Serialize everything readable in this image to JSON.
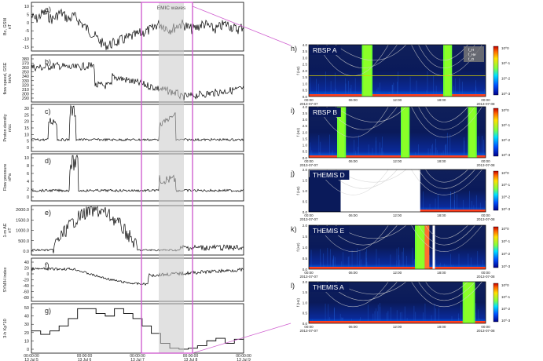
{
  "figure": {
    "left_panels": [
      {
        "letter": "a)",
        "ylabel": [
          "Bz, GSM",
          "nT"
        ],
        "ticks": [
          "10",
          "5",
          "0",
          "-5",
          "-10",
          "-15"
        ]
      },
      {
        "letter": "b)",
        "ylabel": [
          "flow speed, GSE",
          "km/s"
        ],
        "ticks": [
          "380",
          "370",
          "360",
          "350",
          "340",
          "330",
          "320",
          "310",
          "300",
          "290"
        ]
      },
      {
        "letter": "c)",
        "ylabel": [
          "Proton density",
          "n/cc"
        ],
        "ticks": [
          "30",
          "25",
          "20",
          "15",
          "10",
          "5",
          "0"
        ]
      },
      {
        "letter": "d)",
        "ylabel": [
          "Flow pressure",
          "nPa"
        ],
        "ticks": [
          "10",
          "8",
          "6",
          "4",
          "2",
          "0"
        ]
      },
      {
        "letter": "e)",
        "ylabel": [
          "1-m AE",
          "nT"
        ],
        "ticks": [
          "2000.0",
          "1500.0",
          "1000.0",
          "500.0",
          "0.0"
        ]
      },
      {
        "letter": "f)",
        "ylabel": [
          "SYM/H index"
        ],
        "ticks": [
          "40",
          "20",
          "0",
          "-20",
          "-40",
          "-60",
          "-80"
        ]
      },
      {
        "letter": "g)",
        "ylabel": [
          "3-h Kp*10"
        ],
        "ticks": [
          "50",
          "40",
          "30",
          "20",
          "10",
          "0"
        ]
      }
    ],
    "emic_label": "EMIC waves",
    "left_xticks": [
      [
        "00:00:00",
        "13 Jul 5"
      ],
      [
        "00:00:00",
        "13 Jul 6"
      ],
      [
        "00:00:00",
        "13 Jul 7"
      ],
      [
        "00:00:00",
        "13 Jul 8"
      ],
      [
        "00:00:00",
        "13 Jul 9"
      ]
    ],
    "right_panels": [
      {
        "letter": "h)",
        "title": "RBSP A",
        "ticks": [
          "4.0",
          "3.5",
          "3.0",
          "2.5",
          "2.0",
          "1.5",
          "1.0",
          "0.5",
          "0.0"
        ],
        "legend": [
          "f_H",
          "f_He",
          "f_O"
        ]
      },
      {
        "letter": "i)",
        "title": "RBSP B",
        "ticks": [
          "4.0",
          "3.5",
          "3.0",
          "2.5",
          "2.0",
          "1.5",
          "1.0",
          "0.5",
          "0.0"
        ]
      },
      {
        "letter": "j)",
        "title": "THEMIS D",
        "ticks": [
          "2.0",
          "1.5",
          "1.0",
          "0.5",
          "0.0"
        ]
      },
      {
        "letter": "k)",
        "title": "THEMIS E",
        "ticks": [
          "2.0",
          "1.5",
          "1.0",
          "0.5",
          "0.0"
        ]
      },
      {
        "letter": "l)",
        "title": "THEMIS A",
        "ticks": [
          "2.0",
          "1.5",
          "1.0",
          "0.5",
          "0.0"
        ]
      }
    ],
    "right_ylabel": "f (Hz)",
    "right_xticks": [
      "00:00",
      "06:00",
      "12:00",
      "18:00",
      "00:00"
    ],
    "right_dates": [
      "2013-07-07",
      "2013-07-08"
    ],
    "colorbar_ticks": [
      "10^0",
      "10^-1",
      "10^-2",
      "10^-3"
    ]
  }
}
